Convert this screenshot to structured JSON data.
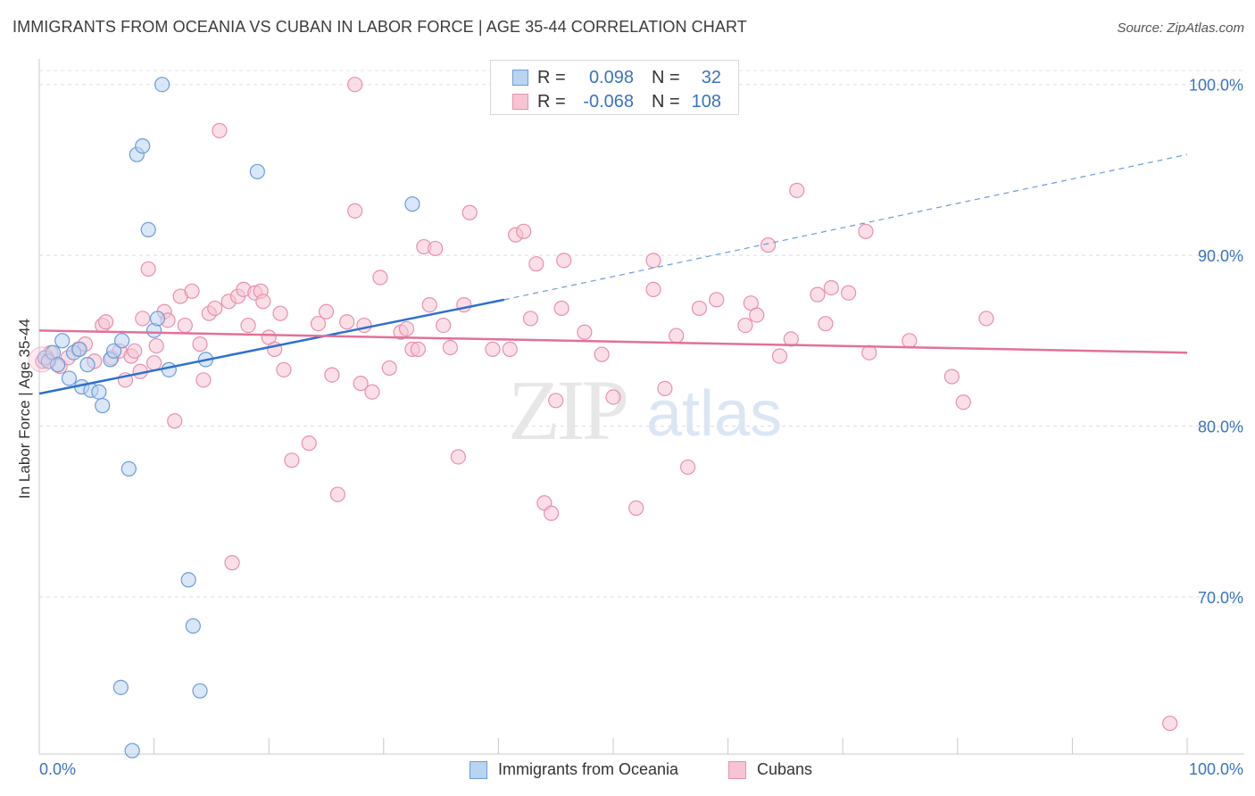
{
  "title": "IMMIGRANTS FROM OCEANIA VS CUBAN IN LABOR FORCE | AGE 35-44 CORRELATION CHART",
  "source": "Source: ZipAtlas.com",
  "watermark": {
    "zip": "ZIP",
    "atlas": "atlas"
  },
  "legend": {
    "r_label": "R =",
    "n_label": "N =",
    "rows": [
      {
        "r": "0.098",
        "n": "32",
        "fill": "#b9d3f3",
        "stroke": "#6c9bd8"
      },
      {
        "r": "-0.068",
        "n": "108",
        "fill": "#f7c4d4",
        "stroke": "#e790ae"
      }
    ]
  },
  "chart_data": {
    "type": "scatter",
    "title": "IMMIGRANTS FROM OCEANIA VS CUBAN IN LABOR FORCE | AGE 35-44 CORRELATION CHART",
    "xlabel": "",
    "ylabel": "In Labor Force | Age 35-44",
    "xlim": [
      0,
      100
    ],
    "ylim": [
      60.8,
      101.5
    ],
    "x_tick_labels": [
      "0.0%",
      "100.0%"
    ],
    "y_ticks": [
      70,
      80,
      90,
      100
    ],
    "y_tick_labels": [
      "70.0%",
      "80.0%",
      "90.0%",
      "100.0%"
    ],
    "grid": true,
    "legend_position": "top-center",
    "series": [
      {
        "name": "Immigrants from Oceania",
        "color": "#6c9bd8",
        "fill": "#b9d3f3",
        "points": [
          [
            0.5,
            84.0
          ],
          [
            0.8,
            83.8
          ],
          [
            1.2,
            84.3
          ],
          [
            1.6,
            83.6
          ],
          [
            2.0,
            85.0
          ],
          [
            2.6,
            82.8
          ],
          [
            3.0,
            84.3
          ],
          [
            3.5,
            84.5
          ],
          [
            3.7,
            82.3
          ],
          [
            4.2,
            83.6
          ],
          [
            4.5,
            82.1
          ],
          [
            5.2,
            82.0
          ],
          [
            5.5,
            81.2
          ],
          [
            6.2,
            83.9
          ],
          [
            6.5,
            84.4
          ],
          [
            7.2,
            85.0
          ],
          [
            7.8,
            77.5
          ],
          [
            8.1,
            61.0
          ],
          [
            8.5,
            95.9
          ],
          [
            9.0,
            96.4
          ],
          [
            9.5,
            91.5
          ],
          [
            10.0,
            85.6
          ],
          [
            10.3,
            86.3
          ],
          [
            10.7,
            100.0
          ],
          [
            11.3,
            83.3
          ],
          [
            13.0,
            71.0
          ],
          [
            13.4,
            68.3
          ],
          [
            14.0,
            64.5
          ],
          [
            14.5,
            83.9
          ],
          [
            7.1,
            64.7
          ],
          [
            19.0,
            94.9
          ],
          [
            32.5,
            93.0
          ]
        ],
        "trend": {
          "x0": 0,
          "y0": 81.9,
          "x1": 40.5,
          "y1": 87.4,
          "dash_to_x": 100,
          "dash_to_y": 95.9
        }
      },
      {
        "name": "Cubans",
        "color": "#e790ae",
        "fill": "#f7c4d4",
        "points": [
          [
            0.3,
            83.8
          ],
          [
            1.0,
            84.3
          ],
          [
            1.8,
            83.5
          ],
          [
            2.5,
            84.0
          ],
          [
            3.4,
            84.5
          ],
          [
            4.0,
            84.8
          ],
          [
            4.8,
            83.8
          ],
          [
            5.5,
            85.9
          ],
          [
            5.8,
            86.1
          ],
          [
            6.3,
            84.0
          ],
          [
            7.0,
            84.4
          ],
          [
            7.5,
            82.7
          ],
          [
            8.0,
            84.1
          ],
          [
            8.3,
            84.4
          ],
          [
            8.8,
            83.2
          ],
          [
            9.0,
            86.3
          ],
          [
            9.5,
            89.2
          ],
          [
            10.0,
            83.7
          ],
          [
            10.2,
            84.7
          ],
          [
            10.9,
            86.7
          ],
          [
            11.2,
            86.2
          ],
          [
            11.8,
            80.3
          ],
          [
            12.3,
            87.6
          ],
          [
            12.7,
            85.9
          ],
          [
            13.3,
            87.9
          ],
          [
            14.0,
            84.8
          ],
          [
            14.3,
            82.7
          ],
          [
            14.8,
            86.6
          ],
          [
            15.3,
            86.9
          ],
          [
            15.7,
            97.3
          ],
          [
            16.5,
            87.3
          ],
          [
            16.8,
            72.0
          ],
          [
            17.3,
            87.6
          ],
          [
            17.8,
            88.0
          ],
          [
            18.2,
            85.9
          ],
          [
            18.8,
            87.8
          ],
          [
            19.3,
            87.9
          ],
          [
            19.5,
            87.3
          ],
          [
            20.0,
            85.2
          ],
          [
            20.5,
            84.5
          ],
          [
            21.0,
            86.6
          ],
          [
            21.3,
            83.3
          ],
          [
            22.0,
            78.0
          ],
          [
            23.5,
            79.0
          ],
          [
            24.3,
            86.0
          ],
          [
            25.0,
            86.7
          ],
          [
            25.5,
            83.0
          ],
          [
            26.0,
            76.0
          ],
          [
            26.8,
            86.1
          ],
          [
            27.5,
            92.6
          ],
          [
            28.0,
            82.5
          ],
          [
            28.3,
            85.9
          ],
          [
            29.0,
            82.0
          ],
          [
            29.7,
            88.7
          ],
          [
            30.5,
            83.4
          ],
          [
            31.5,
            85.5
          ],
          [
            32.0,
            85.7
          ],
          [
            32.5,
            84.5
          ],
          [
            33.5,
            90.5
          ],
          [
            34.0,
            87.1
          ],
          [
            34.5,
            90.4
          ],
          [
            35.2,
            85.9
          ],
          [
            35.8,
            84.6
          ],
          [
            36.5,
            78.2
          ],
          [
            37.0,
            87.1
          ],
          [
            37.5,
            92.5
          ],
          [
            41.0,
            84.5
          ],
          [
            41.5,
            91.2
          ],
          [
            42.2,
            91.4
          ],
          [
            42.8,
            86.3
          ],
          [
            43.3,
            89.5
          ],
          [
            44.0,
            75.5
          ],
          [
            44.6,
            74.9
          ],
          [
            45.0,
            81.5
          ],
          [
            45.5,
            86.9
          ],
          [
            45.7,
            89.7
          ],
          [
            49.0,
            84.2
          ],
          [
            50.0,
            81.7
          ],
          [
            52.0,
            75.2
          ],
          [
            53.5,
            89.7
          ],
          [
            53.5,
            88.0
          ],
          [
            54.5,
            82.2
          ],
          [
            55.5,
            85.3
          ],
          [
            56.5,
            77.6
          ],
          [
            57.5,
            86.9
          ],
          [
            59.0,
            87.4
          ],
          [
            61.5,
            85.9
          ],
          [
            62.0,
            87.2
          ],
          [
            62.5,
            86.5
          ],
          [
            63.5,
            90.6
          ],
          [
            64.5,
            84.1
          ],
          [
            65.5,
            85.1
          ],
          [
            66.0,
            93.8
          ],
          [
            67.8,
            87.7
          ],
          [
            68.5,
            86.0
          ],
          [
            69.0,
            88.1
          ],
          [
            70.5,
            87.8
          ],
          [
            72.0,
            91.4
          ],
          [
            72.3,
            84.3
          ],
          [
            75.8,
            85.0
          ],
          [
            79.5,
            82.9
          ],
          [
            80.5,
            81.4
          ],
          [
            82.5,
            86.3
          ],
          [
            98.5,
            62.6
          ],
          [
            27.5,
            100.0
          ],
          [
            33.0,
            84.5
          ],
          [
            39.5,
            84.5
          ],
          [
            47.5,
            85.5
          ]
        ],
        "trend": {
          "x0": 0,
          "y0": 85.6,
          "x1": 100,
          "y1": 84.3
        }
      }
    ]
  }
}
